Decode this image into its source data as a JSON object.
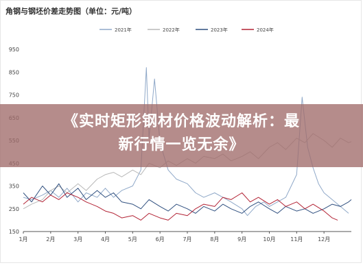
{
  "chart_data": {
    "type": "line",
    "title": "角钢与钢坯价差走势图（单位：元/吨）",
    "xlabel": "",
    "ylabel": "",
    "ylim": [
      150,
      950
    ],
    "yticks": [
      150,
      250,
      350,
      450,
      550,
      650,
      750,
      850,
      950
    ],
    "x_ticks": [
      "1月",
      "2月",
      "3月",
      "4月",
      "5月",
      "6月",
      "7月",
      "8月",
      "9月",
      "10月",
      "11月",
      "12月"
    ],
    "legend_position": "top",
    "grid": false,
    "series": [
      {
        "name": "2021年",
        "color": "#8fa8c8",
        "values": [
          [
            1.0,
            300
          ],
          [
            1.3,
            290
          ],
          [
            1.7,
            310
          ],
          [
            2.0,
            330
          ],
          [
            2.3,
            300
          ],
          [
            2.6,
            340
          ],
          [
            3.0,
            280
          ],
          [
            3.3,
            320
          ],
          [
            3.7,
            300
          ],
          [
            4.0,
            340
          ],
          [
            4.3,
            300
          ],
          [
            4.6,
            330
          ],
          [
            5.0,
            350
          ],
          [
            5.3,
            420
          ],
          [
            5.5,
            870
          ],
          [
            5.6,
            560
          ],
          [
            5.8,
            820
          ],
          [
            6.0,
            540
          ],
          [
            6.3,
            420
          ],
          [
            6.6,
            380
          ],
          [
            7.0,
            360
          ],
          [
            7.3,
            320
          ],
          [
            7.6,
            300
          ],
          [
            8.0,
            320
          ],
          [
            8.3,
            300
          ],
          [
            8.6,
            280
          ],
          [
            9.0,
            250
          ],
          [
            9.2,
            220
          ],
          [
            9.5,
            260
          ],
          [
            9.8,
            280
          ],
          [
            10.0,
            260
          ],
          [
            10.3,
            280
          ],
          [
            10.6,
            300
          ],
          [
            10.8,
            350
          ],
          [
            11.0,
            400
          ],
          [
            11.2,
            740
          ],
          [
            11.4,
            520
          ],
          [
            11.6,
            430
          ],
          [
            11.8,
            360
          ],
          [
            12.0,
            320
          ],
          [
            12.3,
            290
          ],
          [
            12.6,
            260
          ],
          [
            12.9,
            230
          ]
        ]
      },
      {
        "name": "2022年",
        "color": "#b8b8b8",
        "values": [
          [
            1.0,
            250
          ],
          [
            1.3,
            270
          ],
          [
            1.7,
            290
          ],
          [
            2.0,
            330
          ],
          [
            2.3,
            350
          ],
          [
            2.6,
            320
          ],
          [
            3.0,
            360
          ],
          [
            3.3,
            330
          ],
          [
            3.7,
            380
          ],
          [
            4.0,
            400
          ],
          [
            4.3,
            410
          ],
          [
            4.6,
            390
          ],
          [
            5.0,
            420
          ],
          [
            5.3,
            400
          ],
          [
            5.6,
            450
          ],
          [
            6.0,
            430
          ],
          [
            6.3,
            460
          ],
          [
            6.6,
            440
          ],
          [
            7.0,
            470
          ],
          [
            7.3,
            450
          ],
          [
            7.6,
            480
          ],
          [
            8.0,
            470
          ],
          [
            8.3,
            490
          ],
          [
            8.6,
            460
          ],
          [
            9.0,
            480
          ],
          [
            9.3,
            500
          ],
          [
            9.6,
            470
          ],
          [
            10.0,
            520
          ],
          [
            10.3,
            540
          ],
          [
            10.6,
            510
          ],
          [
            11.0,
            560
          ],
          [
            11.3,
            540
          ],
          [
            11.6,
            580
          ],
          [
            12.0,
            550
          ],
          [
            12.3,
            520
          ],
          [
            12.6,
            560
          ],
          [
            12.9,
            540
          ],
          [
            13.0,
            545
          ]
        ]
      },
      {
        "name": "2023年",
        "color": "#2f4f7f",
        "values": [
          [
            1.0,
            320
          ],
          [
            1.3,
            280
          ],
          [
            1.7,
            350
          ],
          [
            2.0,
            310
          ],
          [
            2.3,
            360
          ],
          [
            2.6,
            300
          ],
          [
            3.0,
            340
          ],
          [
            3.3,
            290
          ],
          [
            3.7,
            330
          ],
          [
            4.0,
            300
          ],
          [
            4.3,
            320
          ],
          [
            4.6,
            280
          ],
          [
            5.0,
            270
          ],
          [
            5.3,
            250
          ],
          [
            5.6,
            290
          ],
          [
            6.0,
            260
          ],
          [
            6.3,
            240
          ],
          [
            6.6,
            270
          ],
          [
            7.0,
            250
          ],
          [
            7.3,
            230
          ],
          [
            7.6,
            260
          ],
          [
            8.0,
            240
          ],
          [
            8.3,
            270
          ],
          [
            8.6,
            250
          ],
          [
            9.0,
            230
          ],
          [
            9.3,
            260
          ],
          [
            9.6,
            280
          ],
          [
            10.0,
            250
          ],
          [
            10.3,
            230
          ],
          [
            10.6,
            260
          ],
          [
            11.0,
            240
          ],
          [
            11.3,
            250
          ],
          [
            11.6,
            230
          ],
          [
            12.0,
            250
          ],
          [
            12.3,
            270
          ],
          [
            12.6,
            260
          ],
          [
            12.9,
            280
          ],
          [
            13.0,
            290
          ]
        ]
      },
      {
        "name": "2024年",
        "color": "#b22234",
        "values": [
          [
            1.0,
            270
          ],
          [
            1.3,
            300
          ],
          [
            1.7,
            280
          ],
          [
            2.0,
            310
          ],
          [
            2.3,
            290
          ],
          [
            2.6,
            320
          ],
          [
            3.0,
            300
          ],
          [
            3.3,
            280
          ],
          [
            3.7,
            260
          ],
          [
            4.0,
            240
          ],
          [
            4.3,
            230
          ],
          [
            4.6,
            210
          ],
          [
            5.0,
            220
          ],
          [
            5.3,
            200
          ],
          [
            5.6,
            230
          ],
          [
            6.0,
            210
          ],
          [
            6.3,
            200
          ],
          [
            6.6,
            230
          ],
          [
            7.0,
            220
          ],
          [
            7.3,
            250
          ],
          [
            7.6,
            270
          ],
          [
            8.0,
            260
          ],
          [
            8.3,
            300
          ],
          [
            8.6,
            290
          ],
          [
            9.0,
            320
          ],
          [
            9.3,
            280
          ],
          [
            9.6,
            300
          ],
          [
            10.0,
            270
          ],
          [
            10.3,
            290
          ],
          [
            10.6,
            260
          ],
          [
            11.0,
            280
          ],
          [
            11.3,
            250
          ],
          [
            11.6,
            270
          ],
          [
            12.0,
            240
          ],
          [
            12.3,
            210
          ],
          [
            12.5,
            200
          ]
        ]
      }
    ]
  },
  "overlay": {
    "line1": "《实时矩形钢材价格波动解析：最",
    "line2": "新行情一览无余》"
  }
}
